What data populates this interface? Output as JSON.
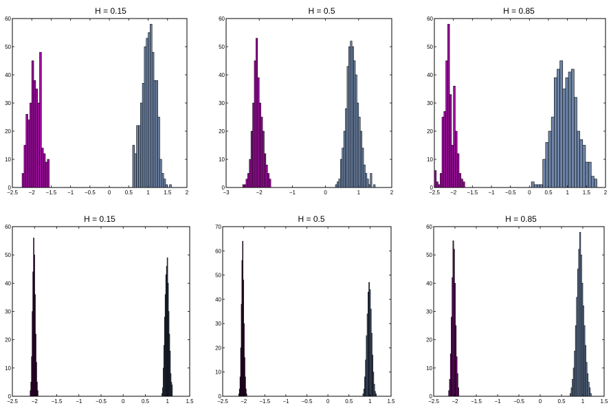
{
  "chart_data": [
    {
      "type": "bar",
      "title": "H = 0.15",
      "xlim": [
        -2.5,
        2
      ],
      "ylim": [
        0,
        60
      ],
      "xticks": [
        -2.5,
        -2,
        -1.5,
        -1,
        -0.5,
        0,
        0.5,
        1,
        1.5,
        2
      ],
      "yticks": [
        0,
        10,
        20,
        30,
        40,
        50,
        60
      ],
      "series": [
        {
          "color": "#9a0f9a",
          "x_start": -2.25,
          "bin_width": 0.05,
          "values": [
            5,
            15,
            26,
            24,
            30,
            45,
            38,
            35,
            30,
            48,
            14,
            12,
            9,
            10
          ]
        },
        {
          "color": "#6f86a8",
          "x_start": 0.6,
          "bin_width": 0.05,
          "values": [
            15,
            12,
            22,
            22,
            30,
            37,
            50,
            53,
            55,
            58,
            48,
            38,
            38,
            25,
            10,
            5,
            3,
            1,
            0,
            1
          ]
        }
      ]
    },
    {
      "type": "bar",
      "title": "H = 0.5",
      "xlim": [
        -3,
        2
      ],
      "ylim": [
        0,
        60
      ],
      "xticks": [
        -3,
        -2,
        -1,
        0,
        1,
        2
      ],
      "yticks": [
        0,
        10,
        20,
        30,
        40,
        50,
        60
      ],
      "series": [
        {
          "color": "#9a0f9a",
          "x_start": -2.5,
          "bin_width": 0.05,
          "values": [
            1,
            1,
            3,
            5,
            10,
            20,
            30,
            45,
            53,
            39,
            30,
            25,
            20,
            12,
            8,
            5,
            3
          ]
        },
        {
          "color": "#6f86a8",
          "x_start": 0.3,
          "bin_width": 0.05,
          "values": [
            1,
            2,
            3,
            10,
            14,
            20,
            28,
            43,
            50,
            52,
            50,
            45,
            40,
            30,
            25,
            20,
            14,
            8,
            5,
            3,
            1,
            5,
            0,
            1
          ]
        }
      ]
    },
    {
      "type": "bar",
      "title": "H = 0.85",
      "xlim": [
        -2.5,
        2
      ],
      "ylim": [
        0,
        60
      ],
      "xticks": [
        -2.5,
        -2,
        -1.5,
        -1,
        -0.5,
        0,
        0.5,
        1,
        1.5,
        2
      ],
      "yticks": [
        0,
        10,
        20,
        30,
        40,
        50,
        60
      ],
      "series": [
        {
          "color": "#9a0f9a",
          "x_start": -2.5,
          "bin_width": 0.05,
          "values": [
            6,
            2,
            1,
            5,
            25,
            27,
            45,
            58,
            33,
            15,
            36,
            20,
            12,
            5,
            3,
            2
          ]
        },
        {
          "color": "#6f86a8",
          "x_start": 0.05,
          "bin_width": 0.075,
          "values": [
            2,
            1,
            1,
            1,
            10,
            16,
            20,
            25,
            39,
            42,
            45,
            35,
            39,
            41,
            42,
            32,
            20,
            17,
            15,
            9,
            9,
            4,
            3
          ]
        }
      ]
    },
    {
      "type": "bar",
      "title": "H = 0.15",
      "xlim": [
        -2.5,
        1.5
      ],
      "ylim": [
        0,
        60
      ],
      "xticks": [
        -2.5,
        -2,
        -1.5,
        -1,
        -0.5,
        0,
        0.5,
        1,
        1.5
      ],
      "yticks": [
        0,
        10,
        20,
        30,
        40,
        50,
        60
      ],
      "series": [
        {
          "color": "#7a0a7a",
          "x_start": -2.1,
          "bin_width": 0.015,
          "values": [
            2,
            5,
            14,
            30,
            44,
            56,
            50,
            36,
            22,
            12,
            5,
            2
          ]
        },
        {
          "color": "#556b8c",
          "x_start": 0.87,
          "bin_width": 0.015,
          "values": [
            1,
            3,
            10,
            18,
            28,
            36,
            43,
            46,
            49,
            40,
            30,
            22,
            16,
            8,
            5,
            4
          ]
        }
      ]
    },
    {
      "type": "bar",
      "title": "H = 0.5",
      "xlim": [
        -2.5,
        1.5
      ],
      "ylim": [
        0,
        70
      ],
      "xticks": [
        -2.5,
        -2,
        -1.5,
        -1,
        -0.5,
        0,
        0.5,
        1,
        1.5
      ],
      "yticks": [
        0,
        10,
        20,
        30,
        40,
        50,
        60,
        70
      ],
      "series": [
        {
          "color": "#6a0a6a",
          "x_start": -2.12,
          "bin_width": 0.015,
          "values": [
            1,
            3,
            8,
            20,
            38,
            56,
            64,
            48,
            30,
            16,
            8,
            3,
            1
          ]
        },
        {
          "color": "#556b8c",
          "x_start": 0.83,
          "bin_width": 0.02,
          "values": [
            1,
            3,
            8,
            15,
            25,
            34,
            43,
            47,
            44,
            36,
            26,
            17,
            10,
            5,
            2,
            1
          ]
        }
      ]
    },
    {
      "type": "bar",
      "title": "H = 0.85",
      "xlim": [
        -2.5,
        1.5
      ],
      "ylim": [
        0,
        60
      ],
      "xticks": [
        -2.5,
        -2,
        -1.5,
        -1,
        -0.5,
        0,
        0.5,
        1,
        1.5
      ],
      "yticks": [
        0,
        10,
        20,
        30,
        40,
        50,
        60
      ],
      "series": [
        {
          "color": "#8a0f8a",
          "x_start": -2.15,
          "bin_width": 0.02,
          "values": [
            2,
            6,
            15,
            28,
            42,
            55,
            52,
            40,
            25,
            14,
            8,
            3
          ]
        },
        {
          "color": "#6f86a8",
          "x_start": 0.7,
          "bin_width": 0.025,
          "values": [
            1,
            3,
            6,
            10,
            16,
            25,
            35,
            45,
            52,
            58,
            50,
            40,
            32,
            25,
            18,
            12,
            8,
            5,
            3,
            1
          ]
        }
      ]
    }
  ]
}
